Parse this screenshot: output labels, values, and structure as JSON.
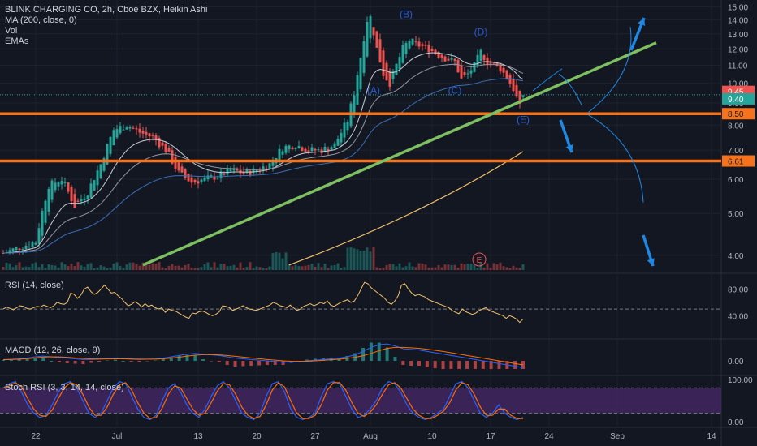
{
  "header": {
    "title": "BLINK CHARGING CO, 2h, Cboe BZX, Heikin Ashi",
    "indicators": [
      "MA (200, close, 0)",
      "Vol",
      "EMAs"
    ]
  },
  "colors": {
    "background": "#131722",
    "up": "#26a69a",
    "down": "#ef5350",
    "trendline": "#7ec061",
    "support": "#f7731b",
    "arrow": "#1e88e5",
    "ma200": "#f5c26b",
    "rsi": "#f5c26b",
    "macd": "#2962ff",
    "signal": "#ff6d00",
    "stoch_k": "#2962ff",
    "stoch_d": "#ff6d00",
    "stoch_band": "#4a2a6e"
  },
  "panes": {
    "rsi": {
      "label": "RSI (14, close)",
      "ticks": [
        "80.00",
        "40.00"
      ]
    },
    "macd": {
      "label": "MACD (12, 26, close, 9)",
      "ticks": [
        "0.00"
      ]
    },
    "stoch": {
      "label": "Stoch RSI (3, 3, 14, 14, close)",
      "ticks": [
        "100.00",
        "0.00"
      ]
    }
  },
  "price_tags": [
    {
      "text": "9.45",
      "value": 9.45,
      "kind": "red"
    },
    {
      "text": "9.40",
      "value": 9.4,
      "kind": "green"
    },
    {
      "text": "8.50",
      "value": 8.5,
      "kind": "orange"
    },
    {
      "text": "6.61",
      "value": 6.61,
      "kind": "orange"
    }
  ],
  "earnings_marker": "E",
  "chart_data": {
    "type": "candlestick",
    "title": "BLINK CHARGING CO, 2h, Cboe BZX, Heikin Ashi",
    "y_axis": {
      "scale": "log",
      "range": [
        3.7,
        15.3
      ],
      "ticks": [
        15,
        14,
        13,
        12,
        11,
        10,
        9,
        8,
        7,
        6,
        5,
        4
      ],
      "tick_labels": [
        "15.00",
        "14.00",
        "13.00",
        "12.00",
        "11.00",
        "10.00",
        "9.00",
        "8.00",
        "7.00",
        "6.00",
        "5.00",
        "4.00"
      ]
    },
    "x_axis": {
      "labels": [
        "22",
        "Jul",
        "13",
        "20",
        "27",
        "Aug",
        "10",
        "17",
        "24",
        "Sep",
        "14"
      ]
    },
    "price_path": [
      [
        0,
        4.05
      ],
      [
        10,
        4.3
      ],
      [
        14,
        5.8
      ],
      [
        18,
        6.0
      ],
      [
        22,
        5.2
      ],
      [
        26,
        5.6
      ],
      [
        30,
        6.5
      ],
      [
        34,
        7.8
      ],
      [
        38,
        8.0
      ],
      [
        42,
        7.7
      ],
      [
        46,
        7.5
      ],
      [
        50,
        7.0
      ],
      [
        54,
        6.2
      ],
      [
        58,
        5.9
      ],
      [
        62,
        6.0
      ],
      [
        66,
        6.1
      ],
      [
        70,
        6.3
      ],
      [
        74,
        6.2
      ],
      [
        78,
        6.3
      ],
      [
        82,
        6.5
      ],
      [
        86,
        7.1
      ],
      [
        90,
        7.2
      ],
      [
        94,
        7.0
      ],
      [
        98,
        7.0
      ],
      [
        102,
        7.2
      ],
      [
        106,
        8.2
      ],
      [
        108,
        9.5
      ],
      [
        110,
        11.5
      ],
      [
        112,
        14.0
      ],
      [
        113,
        14.2
      ],
      [
        115,
        12.0
      ],
      [
        117,
        10.5
      ],
      [
        119,
        10.0
      ],
      [
        121,
        11.0
      ],
      [
        123,
        12.0
      ],
      [
        125,
        12.6
      ],
      [
        127,
        12.3
      ],
      [
        131,
        12.0
      ],
      [
        135,
        11.5
      ],
      [
        139,
        11.2
      ],
      [
        141,
        10.2
      ],
      [
        143,
        10.5
      ],
      [
        145,
        11.0
      ],
      [
        147,
        11.8
      ],
      [
        149,
        11.2
      ],
      [
        151,
        11.0
      ],
      [
        153,
        10.8
      ],
      [
        155,
        10.3
      ],
      [
        157,
        9.7
      ],
      [
        159,
        8.8
      ],
      [
        160,
        9.4
      ]
    ],
    "wave_labels": [
      {
        "text": "(A)",
        "x": 114,
        "price": 9.45
      },
      {
        "text": "(B)",
        "x": 124,
        "price": 14.2
      },
      {
        "text": "(C)",
        "x": 139,
        "price": 9.45
      },
      {
        "text": "(D)",
        "x": 147,
        "price": 12.9
      },
      {
        "text": "(E)",
        "x": 160,
        "price": 8.1
      }
    ],
    "support_levels": [
      8.5,
      6.61
    ],
    "trendline": {
      "from": [
        43,
        3.8
      ],
      "to": [
        201,
        12.4
      ]
    },
    "ma200": {
      "from": [
        88,
        3.8
      ],
      "to": [
        160,
        6.95
      ]
    },
    "rsi": {
      "values": [
        50,
        53,
        51,
        49,
        52,
        55,
        54,
        51,
        50,
        52,
        54,
        53,
        56,
        54,
        52,
        55,
        60,
        58,
        57,
        60,
        74,
        72,
        66,
        71,
        80,
        83,
        76,
        72,
        75,
        80,
        86,
        80,
        74,
        75,
        70,
        66,
        60,
        55,
        57,
        61,
        58,
        53,
        58,
        54,
        56,
        52,
        50,
        52,
        45,
        50,
        48,
        47,
        44,
        41,
        38,
        36,
        44,
        43,
        46,
        47,
        45,
        42,
        40,
        42,
        46,
        55,
        54,
        52,
        48,
        50,
        52,
        55,
        52,
        50,
        49,
        48,
        50,
        52,
        54,
        56,
        60,
        58,
        55,
        54,
        52,
        56,
        52,
        48,
        50,
        54,
        56,
        58,
        55,
        57,
        60,
        58,
        62,
        56,
        54,
        57,
        60,
        62,
        64,
        60,
        62,
        70,
        80,
        90,
        88,
        82,
        78,
        74,
        70,
        66,
        60,
        57,
        62,
        70,
        86,
        88,
        80,
        74,
        70,
        72,
        70,
        68,
        64,
        62,
        60,
        58,
        56,
        54,
        52,
        48,
        45,
        43,
        50,
        46,
        44,
        42,
        44,
        48,
        50,
        52,
        48,
        46,
        44,
        42,
        40,
        36,
        40,
        38,
        35,
        30,
        35
      ],
      "ylim": [
        10,
        100
      ],
      "midline": 50
    },
    "macd": {
      "macd": [
        0.1,
        0.12,
        0.15,
        0.2,
        0.3,
        0.35,
        0.3,
        0.25,
        0.2,
        0.15,
        0.1,
        0.1,
        0.12,
        0.15,
        0.18,
        0.15,
        0.12,
        0.1,
        0.12,
        0.14,
        0.2,
        0.3,
        0.4,
        0.5,
        0.55,
        0.5,
        0.45,
        0.4,
        0.3,
        0.2,
        0.15,
        0.1,
        0.05,
        0.0,
        -0.05,
        -0.1,
        -0.08,
        -0.05,
        0.0,
        0.05,
        0.1,
        0.15,
        0.2,
        0.3,
        0.45,
        0.7,
        1.0,
        1.2,
        1.25,
        1.1,
        0.9,
        0.85,
        0.8,
        0.7,
        0.6,
        0.5,
        0.4,
        0.3,
        0.2,
        0.1,
        0.0,
        -0.1,
        -0.2,
        -0.3,
        -0.4,
        -0.5
      ],
      "signal": [
        0.08,
        0.1,
        0.12,
        0.16,
        0.22,
        0.28,
        0.3,
        0.29,
        0.26,
        0.22,
        0.18,
        0.15,
        0.14,
        0.14,
        0.15,
        0.15,
        0.14,
        0.13,
        0.13,
        0.13,
        0.15,
        0.2,
        0.27,
        0.35,
        0.42,
        0.46,
        0.46,
        0.44,
        0.4,
        0.34,
        0.28,
        0.22,
        0.16,
        0.1,
        0.05,
        0.0,
        -0.03,
        -0.04,
        -0.03,
        0.0,
        0.04,
        0.08,
        0.12,
        0.18,
        0.26,
        0.38,
        0.55,
        0.75,
        0.92,
        1.0,
        1.0,
        0.97,
        0.92,
        0.86,
        0.78,
        0.7,
        0.6,
        0.5,
        0.4,
        0.3,
        0.2,
        0.1,
        0.0,
        -0.1,
        -0.2,
        -0.3
      ],
      "ylim": [
        -0.9,
        1.5
      ]
    },
    "stoch": {
      "k": [
        80,
        90,
        95,
        70,
        40,
        20,
        10,
        15,
        40,
        70,
        90,
        95,
        80,
        50,
        20,
        10,
        20,
        50,
        80,
        95,
        90,
        60,
        30,
        10,
        5,
        15,
        50,
        80,
        90,
        70,
        40,
        20,
        10,
        30,
        60,
        85,
        95,
        80,
        50,
        20,
        10,
        5,
        20,
        60,
        90,
        95,
        70,
        30,
        10,
        5,
        10,
        20,
        60,
        90,
        95,
        90,
        60,
        30,
        10,
        15,
        30,
        50,
        80,
        95,
        90,
        70,
        40,
        20,
        10,
        5,
        10,
        20,
        30,
        60,
        90,
        95,
        80,
        50,
        20,
        10,
        20,
        40,
        20,
        10,
        5,
        10
      ],
      "ylim": [
        0,
        100
      ],
      "band": [
        20,
        80
      ]
    }
  }
}
